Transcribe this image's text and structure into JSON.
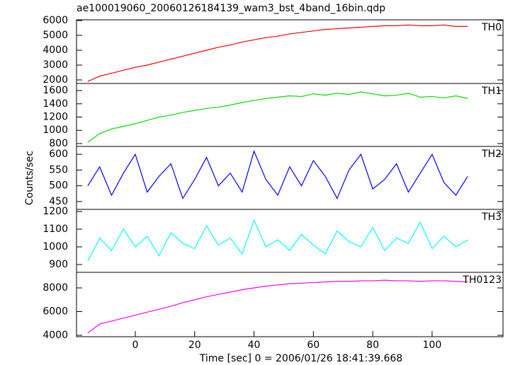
{
  "chart_data": [
    {
      "type": "line",
      "title": "ae100019060_20060126184139_wam3_bst_4band_16bin.qdp",
      "x": [
        -16,
        -12,
        -8,
        -4,
        0,
        4,
        8,
        12,
        16,
        20,
        24,
        28,
        32,
        36,
        40,
        44,
        48,
        52,
        56,
        60,
        64,
        68,
        72,
        76,
        80,
        84,
        88,
        92,
        96,
        100,
        104,
        108,
        112
      ],
      "xlim": [
        -19.8,
        123.9
      ],
      "series": [
        {
          "name": "TH0",
          "color": "#ff0000",
          "values": [
            1900,
            2250,
            2450,
            2650,
            2850,
            3000,
            3200,
            3400,
            3600,
            3800,
            4000,
            4200,
            4350,
            4550,
            4700,
            4850,
            4950,
            5100,
            5200,
            5300,
            5400,
            5450,
            5500,
            5550,
            5600,
            5650,
            5650,
            5700,
            5650,
            5650,
            5700,
            5600,
            5600
          ]
        }
      ],
      "ylim": [
        1762,
        6048
      ],
      "yticks": [
        2000,
        3000,
        4000,
        5000,
        6000
      ]
    },
    {
      "type": "line",
      "x": [
        -16,
        -12,
        -8,
        -4,
        0,
        4,
        8,
        12,
        16,
        20,
        24,
        28,
        32,
        36,
        40,
        44,
        48,
        52,
        56,
        60,
        64,
        68,
        72,
        76,
        80,
        84,
        88,
        92,
        96,
        100,
        104,
        108,
        112
      ],
      "xlim": [
        -19.8,
        123.9
      ],
      "series": [
        {
          "name": "TH1",
          "color": "#00e000",
          "values": [
            820,
            950,
            1020,
            1060,
            1100,
            1150,
            1200,
            1230,
            1270,
            1300,
            1330,
            1350,
            1380,
            1420,
            1450,
            1480,
            1500,
            1520,
            1510,
            1550,
            1530,
            1560,
            1540,
            1580,
            1550,
            1520,
            1530,
            1560,
            1500,
            1510,
            1490,
            1520,
            1480
          ]
        }
      ],
      "ylim": [
        757,
        1707
      ],
      "yticks": [
        800,
        1000,
        1200,
        1400,
        1600
      ]
    },
    {
      "type": "line",
      "ylabel": "Counts/sec",
      "x": [
        -16,
        -12,
        -8,
        -4,
        0,
        4,
        8,
        12,
        16,
        20,
        24,
        28,
        32,
        36,
        40,
        44,
        48,
        52,
        56,
        60,
        64,
        68,
        72,
        76,
        80,
        84,
        88,
        92,
        96,
        100,
        104,
        108,
        112
      ],
      "xlim": [
        -19.8,
        123.9
      ],
      "series": [
        {
          "name": "TH2",
          "color": "#0000ff",
          "values": [
            500,
            560,
            470,
            540,
            600,
            480,
            530,
            570,
            460,
            520,
            590,
            500,
            540,
            480,
            610,
            520,
            470,
            560,
            500,
            580,
            530,
            460,
            550,
            600,
            490,
            520,
            570,
            480,
            540,
            600,
            510,
            470,
            530
          ]
        }
      ],
      "ylim": [
        425,
        625
      ],
      "yticks": [
        450,
        500,
        550,
        600
      ]
    },
    {
      "type": "line",
      "x": [
        -16,
        -12,
        -8,
        -4,
        0,
        4,
        8,
        12,
        16,
        20,
        24,
        28,
        32,
        36,
        40,
        44,
        48,
        52,
        56,
        60,
        64,
        68,
        72,
        76,
        80,
        84,
        88,
        92,
        96,
        100,
        104,
        108,
        112
      ],
      "xlim": [
        -19.8,
        123.9
      ],
      "series": [
        {
          "name": "TH3",
          "color": "#00ffff",
          "values": [
            920,
            1050,
            980,
            1100,
            1000,
            1060,
            950,
            1080,
            1020,
            990,
            1120,
            1010,
            1050,
            960,
            1150,
            1000,
            1040,
            980,
            1070,
            1010,
            960,
            1090,
            1030,
            1000,
            1110,
            980,
            1050,
            1020,
            1140,
            990,
            1060,
            1000,
            1040
          ]
        }
      ],
      "ylim": [
        856,
        1212
      ],
      "yticks": [
        900,
        1000,
        1100,
        1200
      ]
    },
    {
      "type": "line",
      "xlabel": "Time [sec] 0 = 2006/01/26 18:41:39.668",
      "x": [
        -16,
        -12,
        -8,
        -4,
        0,
        4,
        8,
        12,
        16,
        20,
        24,
        28,
        32,
        36,
        40,
        44,
        48,
        52,
        56,
        60,
        64,
        68,
        72,
        76,
        80,
        84,
        88,
        92,
        96,
        100,
        104,
        108,
        112
      ],
      "xlim": [
        -19.8,
        123.9
      ],
      "xticks": [
        0,
        20,
        40,
        60,
        80,
        100
      ],
      "series": [
        {
          "name": "TH0123",
          "color": "#ff00ff",
          "values": [
            4200,
            4950,
            5200,
            5450,
            5700,
            5950,
            6200,
            6450,
            6750,
            7000,
            7250,
            7450,
            7650,
            7850,
            8000,
            8150,
            8250,
            8350,
            8400,
            8450,
            8500,
            8550,
            8550,
            8600,
            8600,
            8650,
            8600,
            8600,
            8550,
            8600,
            8600,
            8550,
            8500
          ]
        }
      ],
      "ylim": [
        3881,
        9313
      ],
      "yticks": [
        4000,
        6000,
        8000
      ]
    }
  ]
}
